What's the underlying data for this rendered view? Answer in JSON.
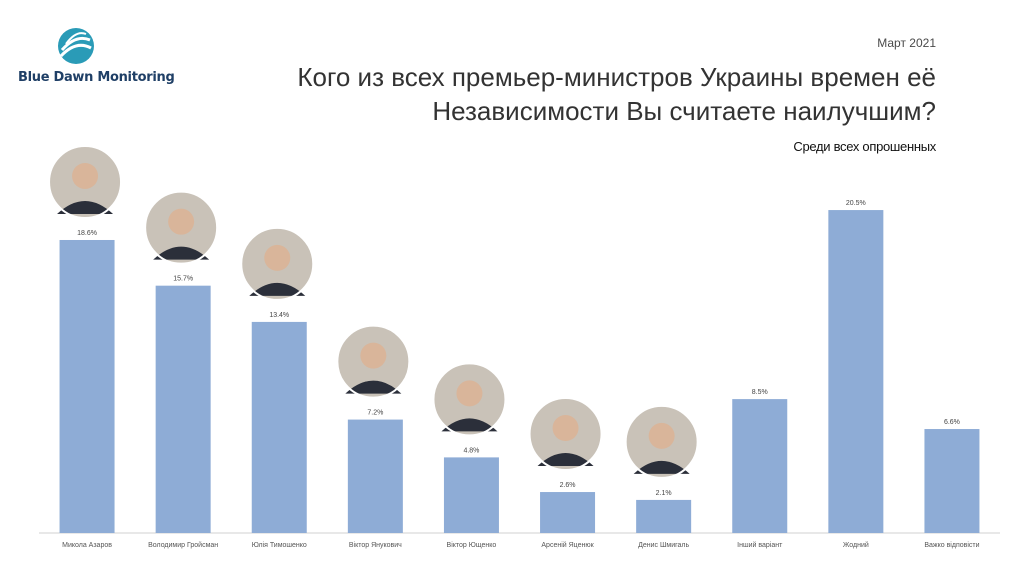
{
  "header": {
    "brand": "Blue Dawn Monitoring",
    "date": "Март 2021",
    "title_line1": "Кого из всех премьер-министров Украины времен её",
    "title_line2": "Независимости Вы считаете наилучшим?",
    "subtitle": "Среди всех опрошенных"
  },
  "colors": {
    "bar": "#8eacd6",
    "brand": "#1f3f66",
    "logo_accent": "#2a9bb7"
  },
  "chart_data": {
    "type": "bar",
    "title": "Кого из всех премьер-министров Украины времен её Независимости Вы считаете наилучшим?",
    "subtitle": "Среди всех опрошенных",
    "categories": [
      "Микола Азаров",
      "Володимир Гройсман",
      "Юлія Тимошенко",
      "Віктор Янукович",
      "Віктор Ющенко",
      "Арсеній Яценюк",
      "Денис Шмигаль",
      "Інший варіант",
      "Жодний",
      "Важко відповісти"
    ],
    "values": [
      18.6,
      15.7,
      13.4,
      7.2,
      4.8,
      2.6,
      2.1,
      8.5,
      20.5,
      6.6
    ],
    "value_labels": [
      "18.6%",
      "15.7%",
      "13.4%",
      "7.2%",
      "4.8%",
      "2.6%",
      "2.1%",
      "8.5%",
      "20.5%",
      "6.6%"
    ],
    "portraits": [
      true,
      true,
      true,
      true,
      true,
      true,
      true,
      false,
      false,
      false
    ],
    "ylim": [
      0,
      22
    ],
    "grid": false,
    "legend": "none"
  }
}
